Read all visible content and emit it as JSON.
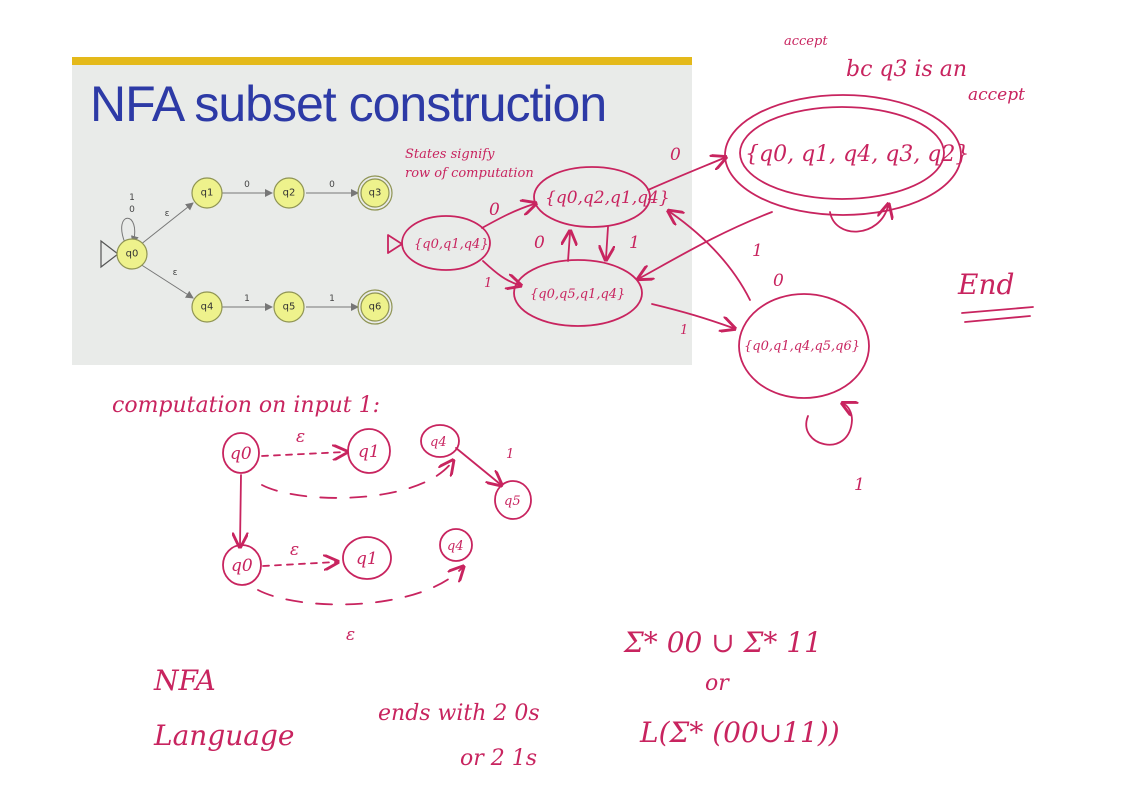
{
  "slide": {
    "title": "NFA subset construction",
    "states": [
      "q0",
      "q1",
      "q2",
      "q3",
      "q4",
      "q5",
      "q6"
    ],
    "edge_labels": {
      "self_loop": "1\n0",
      "q0_q1": "ε",
      "q0_q4": "ε",
      "q1_q2": "0",
      "q2_q3": "0",
      "q4_q5": "1",
      "q5_q6": "1"
    }
  },
  "annotations": {
    "states_note_1": "States signify",
    "states_note_2": "row of computation",
    "dfa_start": "{q0,q1,q4}",
    "dfa_s0": "{q0,q2,q1,q4}",
    "dfa_s1": "{q0,q5,q1,q4}",
    "dfa_accept0": "{q0, q1, q4, q3, q2}",
    "dfa_accept1": "{q0,q1,q4,q5,q6}",
    "edge_start_0": "0",
    "edge_start_1": "1",
    "edge_s1_s0": "0",
    "edge_s0_s1": "1",
    "edge_s0_a0": "0",
    "edge_a0_s1": "1",
    "edge_s1_a1": "1",
    "edge_a1_s0": "0",
    "loop_a1": "1",
    "accept_1": "accept",
    "accept_2": "bc q3 is an",
    "accept_3": "accept",
    "end": "End",
    "computation_title": "computation on input 1:",
    "trace_q0_top": "q0",
    "trace_q1_top": "q1",
    "trace_q4_top": "q4",
    "trace_q5_top": "q5",
    "trace_q0_bottom": "q0",
    "trace_q1_bottom": "q1",
    "trace_q4_bottom": "q4",
    "trace_eps_1": "ε",
    "trace_eps_2": "ε",
    "trace_eps_3": "ε",
    "trace_one": "1",
    "nfa_word": "NFA",
    "language_word": "Language",
    "ends_1": "ends with 2 0s",
    "ends_2": "or 2 1s",
    "regex_1": "Σ* 00 ∪ Σ* 11",
    "regex_or": "or",
    "regex_2": "L(Σ* (00∪11))"
  },
  "colors": {
    "ink": "#c8245f",
    "slide_title": "#2d3aa6",
    "slide_bar": "#e4b91a",
    "nfa_state_fill": "#eef28c"
  }
}
